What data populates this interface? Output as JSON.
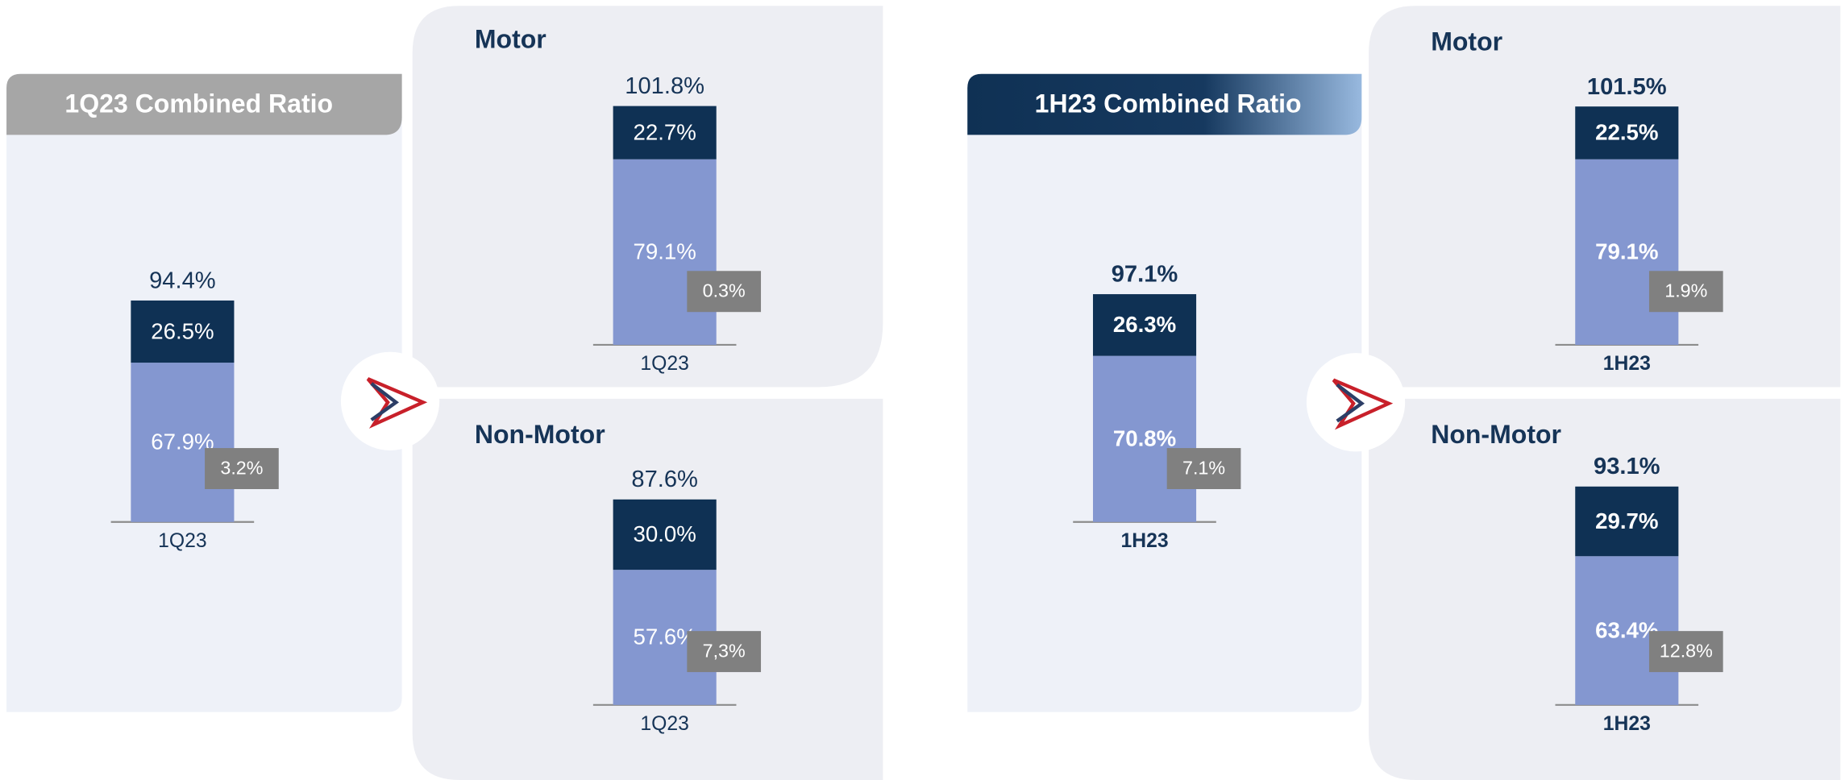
{
  "chart_data": [
    {
      "type": "stacked_bar",
      "title": "1Q23 Combined Ratio",
      "categories": [
        "1Q23"
      ],
      "series": [
        {
          "color": "#8497d0",
          "values": [
            67.9
          ],
          "value_labels": [
            "67.9%"
          ]
        },
        {
          "color": "#0f3154",
          "values": [
            26.5
          ],
          "value_labels": [
            "26.5%"
          ]
        }
      ],
      "totals": [
        94.4
      ],
      "total_labels": [
        "94.4%"
      ],
      "annotations": [
        {
          "value": 3.2,
          "label": "3.2%"
        }
      ],
      "bold": false
    },
    {
      "type": "stacked_bar",
      "title": "Motor",
      "categories": [
        "1Q23"
      ],
      "series": [
        {
          "color": "#8497d0",
          "values": [
            79.1
          ],
          "value_labels": [
            "79.1%"
          ]
        },
        {
          "color": "#0f3154",
          "values": [
            22.7
          ],
          "value_labels": [
            "22.7%"
          ]
        }
      ],
      "totals": [
        101.8
      ],
      "total_labels": [
        "101.8%"
      ],
      "annotations": [
        {
          "value": 0.3,
          "label": "0.3%"
        }
      ],
      "bold": false
    },
    {
      "type": "stacked_bar",
      "title": "Non-Motor",
      "categories": [
        "1Q23"
      ],
      "series": [
        {
          "color": "#8497d0",
          "values": [
            57.6
          ],
          "value_labels": [
            "57.6%"
          ]
        },
        {
          "color": "#0f3154",
          "values": [
            30.0
          ],
          "value_labels": [
            "30.0%"
          ]
        }
      ],
      "totals": [
        87.6
      ],
      "total_labels": [
        "87.6%"
      ],
      "annotations": [
        {
          "value": 7.3,
          "label": "7,3%"
        }
      ],
      "bold": false
    },
    {
      "type": "stacked_bar",
      "title": "1H23 Combined Ratio",
      "categories": [
        "1H23"
      ],
      "series": [
        {
          "color": "#8497d0",
          "values": [
            70.8
          ],
          "value_labels": [
            "70.8%"
          ]
        },
        {
          "color": "#0f3154",
          "values": [
            26.3
          ],
          "value_labels": [
            "26.3%"
          ]
        }
      ],
      "totals": [
        97.1
      ],
      "total_labels": [
        "97.1%"
      ],
      "annotations": [
        {
          "value": 7.1,
          "label": "7.1%"
        }
      ],
      "bold": true
    },
    {
      "type": "stacked_bar",
      "title": "Motor",
      "categories": [
        "1H23"
      ],
      "series": [
        {
          "color": "#8497d0",
          "values": [
            79.1
          ],
          "value_labels": [
            "79.1%"
          ]
        },
        {
          "color": "#0f3154",
          "values": [
            22.5
          ],
          "value_labels": [
            "22.5%"
          ]
        }
      ],
      "totals": [
        101.5
      ],
      "total_labels": [
        "101.5%"
      ],
      "annotations": [
        {
          "value": 1.9,
          "label": "1.9%"
        }
      ],
      "bold": true
    },
    {
      "type": "stacked_bar",
      "title": "Non-Motor",
      "categories": [
        "1H23"
      ],
      "series": [
        {
          "color": "#8497d0",
          "values": [
            63.4
          ],
          "value_labels": [
            "63.4%"
          ]
        },
        {
          "color": "#0f3154",
          "values": [
            29.7
          ],
          "value_labels": [
            "29.7%"
          ]
        }
      ],
      "totals": [
        93.1
      ],
      "total_labels": [
        "93.1%"
      ],
      "annotations": [
        {
          "value": 12.8,
          "label": "12.8%"
        }
      ],
      "bold": true
    }
  ]
}
